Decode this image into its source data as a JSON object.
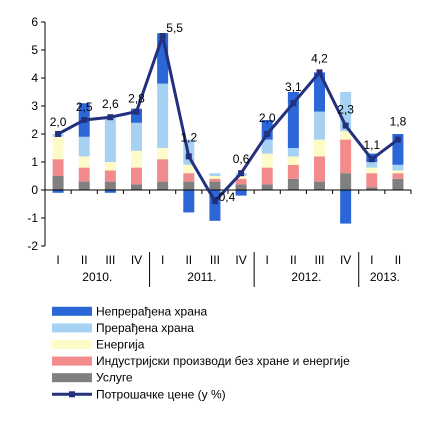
{
  "chart_data": {
    "type": "bar",
    "subtype": "stacked-bar-with-line",
    "title": "",
    "xlabel": "",
    "ylabel": "",
    "ylim": [
      -2,
      6
    ],
    "yticks": [
      "-2",
      "-1",
      "0",
      "1",
      "2",
      "3",
      "4",
      "5",
      "6"
    ],
    "grid": false,
    "legend_position": "bottom",
    "quarter_labels": [
      "I",
      "II",
      "III",
      "IV",
      "I",
      "II",
      "III",
      "IV",
      "I",
      "II",
      "III",
      "IV",
      "I",
      "II"
    ],
    "year_labels": [
      {
        "label": "2010.",
        "start": 0,
        "end": 3
      },
      {
        "label": "2011.",
        "start": 4,
        "end": 7
      },
      {
        "label": "2012.",
        "start": 8,
        "end": 11
      },
      {
        "label": "2013.",
        "start": 12,
        "end": 13
      }
    ],
    "series": [
      {
        "name": "Услуге",
        "kind": "bar",
        "color": "#808080",
        "values": [
          0.5,
          0.3,
          0.3,
          0.2,
          0.3,
          0.3,
          0.3,
          0.2,
          0.2,
          0.4,
          0.3,
          0.6,
          0.1,
          0.4
        ]
      },
      {
        "name": "Индустријски производи без хране и енергије",
        "kind": "bar",
        "color": "#f28c8c",
        "values": [
          0.6,
          0.5,
          0.4,
          0.6,
          0.8,
          0.3,
          0.1,
          0.2,
          0.6,
          0.5,
          0.9,
          1.2,
          0.5,
          0.2
        ]
      },
      {
        "name": "Енергија",
        "kind": "bar",
        "color": "#fdfbc8",
        "values": [
          0.8,
          0.4,
          0.3,
          0.6,
          0.4,
          0.3,
          0.1,
          0.1,
          0.5,
          0.3,
          0.6,
          0.3,
          0.2,
          0.1
        ]
      },
      {
        "name": "Прерађена храна",
        "kind": "bar",
        "color": "#a6d1f2",
        "values": [
          0.1,
          0.7,
          1.6,
          1.0,
          2.3,
          0.9,
          0.1,
          0.1,
          0.5,
          0.3,
          1.0,
          1.4,
          0.2,
          0.2
        ]
      },
      {
        "name": "Непрерађена храна",
        "kind": "bar",
        "color": "#2b67d6",
        "values": [
          -0.1,
          1.2,
          -0.1,
          0.5,
          1.8,
          -0.8,
          -1.1,
          -0.2,
          0.7,
          2.0,
          1.4,
          -1.2,
          0.3,
          1.1
        ]
      },
      {
        "name": "Потрошачке цене (у %)",
        "kind": "line",
        "color": "#23307d",
        "values": [
          2.0,
          2.5,
          2.6,
          2.8,
          5.5,
          1.2,
          -0.4,
          0.6,
          2.0,
          3.1,
          4.2,
          2.3,
          1.1,
          1.8
        ],
        "labels": [
          "2,0",
          "2,5",
          "2,6",
          "2,8",
          "5,5",
          "1,2",
          "-0,4",
          "0,6",
          "2,0",
          "3,1",
          "4,2",
          "2,3",
          "1,1",
          "1,8"
        ]
      }
    ],
    "legend_order": [
      "Непрерађена храна",
      "Прерађена храна",
      "Енергија",
      "Индустријски производи без хране и енергије",
      "Услуге",
      "Потрошачке цене (у %)"
    ]
  }
}
